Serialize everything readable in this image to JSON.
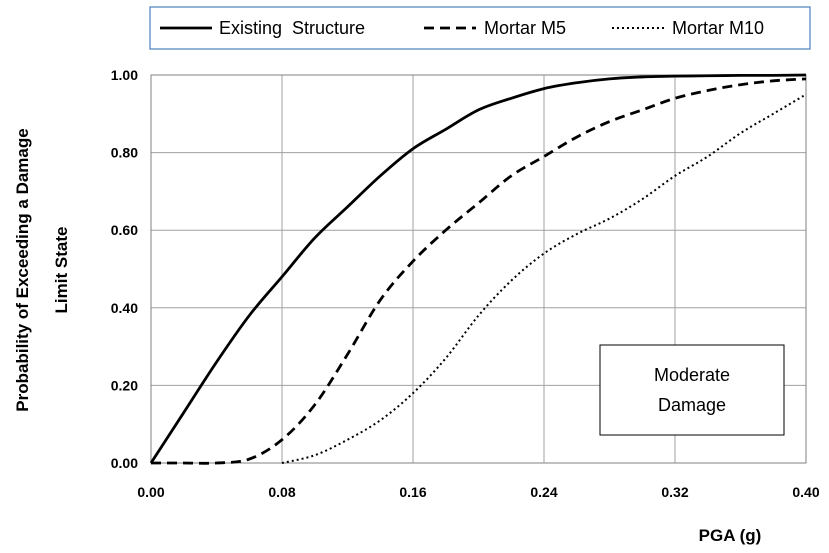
{
  "chart_data": {
    "type": "line",
    "xlabel": "PGA (g)",
    "ylabel": [
      "Probability of Exceeding a Damage",
      "Limit State"
    ],
    "xlim": [
      0,
      0.4
    ],
    "ylim": [
      0,
      1
    ],
    "xticks": [
      0,
      0.08,
      0.16,
      0.24,
      0.32,
      0.4
    ],
    "yticks": [
      0,
      0.2,
      0.4,
      0.6,
      0.8,
      1.0
    ],
    "xtick_labels": [
      "0.00",
      "0.08",
      "0.16",
      "0.24",
      "0.32",
      "0.40"
    ],
    "ytick_labels": [
      "0.00",
      "0.20",
      "0.40",
      "0.60",
      "0.80",
      "1.00"
    ],
    "grid": true,
    "legend_position": "top",
    "annotation": [
      "Moderate",
      "Damage"
    ],
    "colors": {
      "line": "#000000",
      "grid": "#a0a0a0",
      "legend_border": "#4a7ebb"
    },
    "series": [
      {
        "name": "Existing  Structure",
        "style": "solid",
        "x": [
          0,
          0.02,
          0.04,
          0.06,
          0.08,
          0.1,
          0.12,
          0.14,
          0.16,
          0.18,
          0.2,
          0.22,
          0.24,
          0.26,
          0.28,
          0.3,
          0.32,
          0.34,
          0.36,
          0.38,
          0.4
        ],
        "y": [
          0,
          0.13,
          0.26,
          0.38,
          0.48,
          0.58,
          0.66,
          0.74,
          0.81,
          0.86,
          0.91,
          0.94,
          0.965,
          0.98,
          0.99,
          0.995,
          0.997,
          0.998,
          0.999,
          0.999,
          1.0
        ]
      },
      {
        "name": "Mortar M5",
        "style": "dashed",
        "x": [
          0,
          0.02,
          0.04,
          0.06,
          0.08,
          0.1,
          0.12,
          0.14,
          0.16,
          0.18,
          0.2,
          0.22,
          0.24,
          0.26,
          0.28,
          0.3,
          0.32,
          0.34,
          0.36,
          0.38,
          0.4
        ],
        "y": [
          0,
          0,
          0,
          0.01,
          0.06,
          0.15,
          0.28,
          0.42,
          0.52,
          0.6,
          0.67,
          0.74,
          0.79,
          0.84,
          0.88,
          0.91,
          0.94,
          0.96,
          0.975,
          0.985,
          0.99
        ]
      },
      {
        "name": "Mortar M10",
        "style": "dotted",
        "x": [
          0.08,
          0.1,
          0.12,
          0.14,
          0.16,
          0.18,
          0.2,
          0.22,
          0.24,
          0.26,
          0.28,
          0.3,
          0.32,
          0.34,
          0.36,
          0.38,
          0.4
        ],
        "y": [
          0,
          0.02,
          0.06,
          0.11,
          0.18,
          0.27,
          0.38,
          0.47,
          0.54,
          0.59,
          0.63,
          0.68,
          0.74,
          0.79,
          0.85,
          0.9,
          0.95
        ]
      }
    ]
  }
}
